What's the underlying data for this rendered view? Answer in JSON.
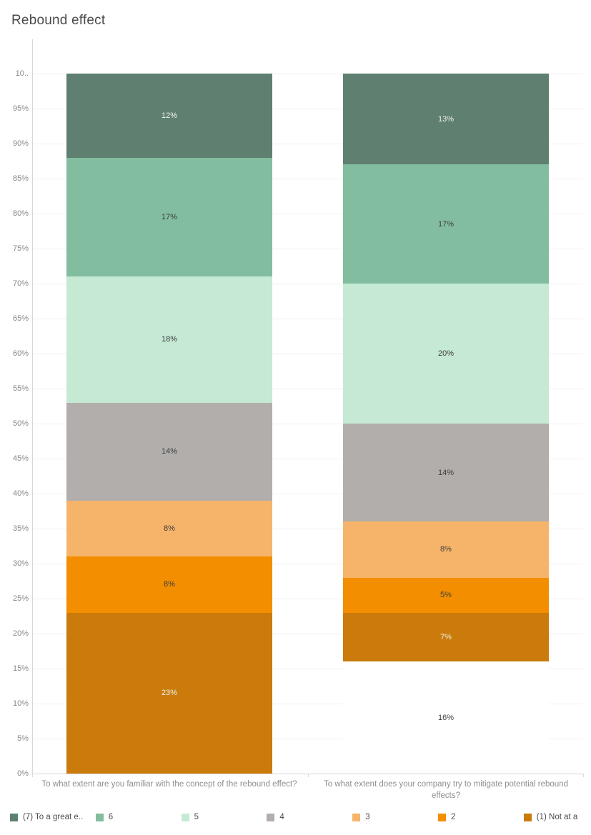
{
  "title": "Rebound effect",
  "chart_data": {
    "type": "bar",
    "stacked": true,
    "orientation": "vertical",
    "value_unit": "%",
    "ylim": [
      0,
      100
    ],
    "ytick_step": 5,
    "ytick_labels": [
      "0%",
      "5%",
      "10%",
      "15%",
      "20%",
      "25%",
      "30%",
      "35%",
      "40%",
      "45%",
      "50%",
      "55%",
      "60%",
      "65%",
      "70%",
      "75%",
      "80%",
      "85%",
      "90%",
      "95%",
      "10.."
    ],
    "grid": true,
    "legend_position": "bottom",
    "palette": {
      "scale7": "#5f8070",
      "scale6": "#83bd9f",
      "scale5": "#c6e9d4",
      "scale4": "#b1aeab",
      "scale3": "#f6b46a",
      "scale2": "#f28e00",
      "scale1": "#ca7b0b",
      "blank": "#ffffff"
    },
    "legend": [
      {
        "label": "(7) To a great e..",
        "color": "scale7"
      },
      {
        "label": "6",
        "color": "scale6"
      },
      {
        "label": "5",
        "color": "scale5"
      },
      {
        "label": "4",
        "color": "scale4"
      },
      {
        "label": "3",
        "color": "scale3"
      },
      {
        "label": "2",
        "color": "scale2"
      },
      {
        "label": "(1) Not at a",
        "color": "scale1"
      }
    ],
    "categories": [
      "To what extent are you familiar with the concept of the rebound effect?",
      "To what extent does your company try to mitigate potential rebound effects?"
    ],
    "bars": [
      {
        "category": "To what extent are you familiar with the concept of the rebound effect?",
        "segments": [
          {
            "name": "(7) To a great e..",
            "value": 12,
            "label": "12%",
            "color": "scale7",
            "text": "light"
          },
          {
            "name": "6",
            "value": 17,
            "label": "17%",
            "color": "scale6",
            "text": "dark"
          },
          {
            "name": "5",
            "value": 18,
            "label": "18%",
            "color": "scale5",
            "text": "dark"
          },
          {
            "name": "4",
            "value": 14,
            "label": "14%",
            "color": "scale4",
            "text": "dark"
          },
          {
            "name": "3",
            "value": 8,
            "label": "8%",
            "color": "scale3",
            "text": "dark"
          },
          {
            "name": "2",
            "value": 8,
            "label": "8%",
            "color": "scale2",
            "text": "dark"
          },
          {
            "name": "(1) Not at a",
            "value": 23,
            "label": "23%",
            "color": "scale1",
            "text": "light"
          }
        ]
      },
      {
        "category": "To what extent does your company try to mitigate potential rebound effects?",
        "segments": [
          {
            "name": "(7) To a great e..",
            "value": 13,
            "label": "13%",
            "color": "scale7",
            "text": "light"
          },
          {
            "name": "6",
            "value": 17,
            "label": "17%",
            "color": "scale6",
            "text": "dark"
          },
          {
            "name": "5",
            "value": 20,
            "label": "20%",
            "color": "scale5",
            "text": "dark"
          },
          {
            "name": "4",
            "value": 14,
            "label": "14%",
            "color": "scale4",
            "text": "dark"
          },
          {
            "name": "3",
            "value": 8,
            "label": "8%",
            "color": "scale3",
            "text": "dark"
          },
          {
            "name": "2",
            "value": 5,
            "label": "5%",
            "color": "scale2",
            "text": "dark"
          },
          {
            "name": "(1) Not at a",
            "value": 7,
            "label": "7%",
            "color": "scale1",
            "text": "light"
          },
          {
            "name": "",
            "value": 16,
            "label": "16%",
            "color": "blank",
            "text": "dark"
          }
        ]
      }
    ]
  }
}
